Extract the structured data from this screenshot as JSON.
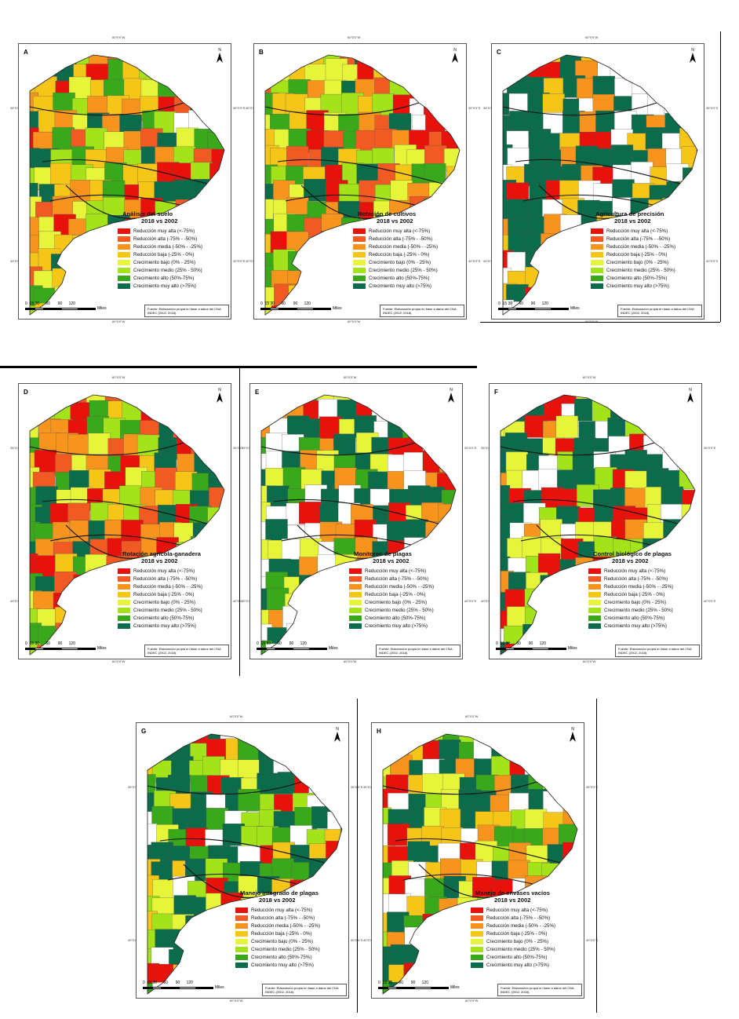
{
  "colors": {
    "muy_alta_red": "#e8120c",
    "alta": "#f15a22",
    "media": "#f7941d",
    "baja": "#f5c518",
    "crec_bajo": "#e6f53a",
    "crec_medio": "#a4e219",
    "crec_alto": "#3aa81b",
    "crec_muy_alto": "#0b6b4b",
    "nodata": "#ffffff"
  },
  "legend_items": [
    {
      "label": "Reducción muy alta (<-75%)",
      "color": "#e8120c"
    },
    {
      "label": "Reducción alta (-75% - -50%)",
      "color": "#f15a22"
    },
    {
      "label": "Reducción media (-50% - -25%)",
      "color": "#f7941d"
    },
    {
      "label": "Reducción baja (-25% - 0%)",
      "color": "#f5c518"
    },
    {
      "label": "Crecimiento bajo (0% - 25%)",
      "color": "#e6f53a"
    },
    {
      "label": "Crecimiento medio (25% - 50%)",
      "color": "#a4e219"
    },
    {
      "label": "Crecimiento alto (50%-75%)",
      "color": "#3aa81b"
    },
    {
      "label": "Crecimiento muy alto (>75%)",
      "color": "#0b6b4b"
    }
  ],
  "subtitle": "2018 vs 2002",
  "source": "Fuente: Elaboración propia en base a datos del CNA INDEC (2002, 2018).",
  "scale": {
    "ticks": "0  15 30      60       90      120",
    "unit": "Miles"
  },
  "north": "N",
  "coords": {
    "lon": "60°0'0\"W",
    "lat1": "35°0'0\"S",
    "lat2": "40°0'0\"S"
  },
  "panels": [
    {
      "letter": "A",
      "title": "Análisis del suelo",
      "palette": [
        "#f7941d",
        "#f5c518",
        "#f5c518",
        "#a4e219",
        "#3aa81b",
        "#0b6b4b",
        "#e6f53a",
        "#f15a22",
        "#e8120c"
      ]
    },
    {
      "letter": "B",
      "title": "Rotación de cultivos",
      "palette": [
        "#f5c518",
        "#a4e219",
        "#3aa81b",
        "#0b6b4b",
        "#e6f53a",
        "#f7941d",
        "#f15a22",
        "#e8120c"
      ]
    },
    {
      "letter": "C",
      "title": "Agricultura de precisión",
      "palette": [
        "#0b6b4b",
        "#0b6b4b",
        "#0b6b4b",
        "#0b6b4b",
        "#ffffff",
        "#ffffff",
        "#f7941d",
        "#f5c518",
        "#e8120c"
      ]
    },
    {
      "letter": "D",
      "title": "Rotación agrícola-ganadera",
      "palette": [
        "#f5c518",
        "#f7941d",
        "#a4e219",
        "#0b6b4b",
        "#e6f53a",
        "#f15a22",
        "#3aa81b",
        "#e8120c"
      ]
    },
    {
      "letter": "E",
      "title": "Monitoreo de plagas",
      "palette": [
        "#0b6b4b",
        "#0b6b4b",
        "#0b6b4b",
        "#3aa81b",
        "#ffffff",
        "#ffffff",
        "#e6f53a",
        "#f7941d",
        "#e8120c"
      ]
    },
    {
      "letter": "F",
      "title": "Control biológico de plagas",
      "palette": [
        "#0b6b4b",
        "#0b6b4b",
        "#0b6b4b",
        "#ffffff",
        "#a4e219",
        "#e6f53a",
        "#f7941d",
        "#e8120c"
      ]
    },
    {
      "letter": "G",
      "title": "Manejo integrado de plagas",
      "palette": [
        "#0b6b4b",
        "#0b6b4b",
        "#0b6b4b",
        "#3aa81b",
        "#a4e219",
        "#ffffff",
        "#f5c518",
        "#e6f53a",
        "#e8120c"
      ]
    },
    {
      "letter": "H",
      "title": "Manejo de envases vacíos",
      "palette": [
        "#0b6b4b",
        "#0b6b4b",
        "#3aa81b",
        "#f5c518",
        "#e6f53a",
        "#a4e219",
        "#ffffff",
        "#f7941d",
        "#e8120c"
      ]
    }
  ]
}
